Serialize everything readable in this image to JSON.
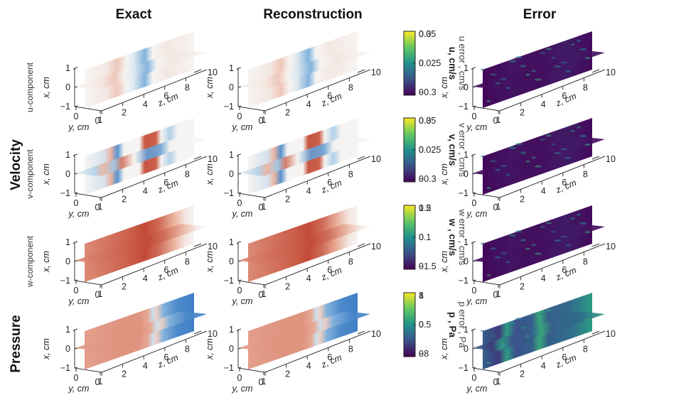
{
  "chart_data": {
    "type": "heatmap",
    "description_columns": [
      "Exact",
      "Reconstruction",
      "Error"
    ],
    "group_labels": [
      "Velocity",
      "Pressure"
    ],
    "axes": {
      "x_label": "x, cm",
      "y_label": "y, cm",
      "z_label": "z, cm",
      "x_ticks": [
        "1",
        "0",
        "−1"
      ],
      "y_ticks": [
        "0",
        "1"
      ],
      "z_ticks": [
        "0",
        "2",
        "4",
        "6",
        "8",
        "10"
      ],
      "z_far_tick": "10",
      "xlim": [
        -1,
        1
      ],
      "ylim": [
        0,
        1
      ],
      "zlim": [
        0,
        10
      ]
    },
    "rows": [
      {
        "label": "u-component",
        "field_colorbar": {
          "label": "u, cm/s",
          "range": [
            -0.3,
            0.3
          ],
          "ticks": [
            "0.3",
            "0",
            "−0.3"
          ],
          "colormap": "balance"
        },
        "error_colorbar": {
          "label": "u error , cm/s",
          "range": [
            0,
            0.05
          ],
          "ticks": [
            "0.05",
            "0.025",
            "0"
          ],
          "colormap": "viridis"
        },
        "pattern": "u"
      },
      {
        "label": "v-component",
        "field_colorbar": {
          "label": "v, cm/s",
          "range": [
            -0.3,
            0.3
          ],
          "ticks": [
            "0.3",
            "0",
            "−0.3"
          ],
          "colormap": "balance"
        },
        "error_colorbar": {
          "label": "v error , cm/s",
          "range": [
            0,
            0.05
          ],
          "ticks": [
            "0.05",
            "0.025",
            "0"
          ],
          "colormap": "viridis"
        },
        "pattern": "v"
      },
      {
        "label": "w-component",
        "field_colorbar": {
          "label": "w , cm/s",
          "range": [
            -1.5,
            1.5
          ],
          "ticks": [
            "1.5",
            "0",
            "−1.5"
          ],
          "colormap": "balance"
        },
        "error_colorbar": {
          "label": "w error , cm/s",
          "range": [
            0,
            0.2
          ],
          "ticks": [
            "0.2",
            "0.1",
            "0"
          ],
          "colormap": "viridis"
        },
        "pattern": "w"
      },
      {
        "label": "",
        "field_colorbar": {
          "label": "p , Pa",
          "range": [
            -8,
            8
          ],
          "ticks": [
            "8",
            "0",
            "−8"
          ],
          "colormap": "balance"
        },
        "error_colorbar": {
          "label": "p error , Pa",
          "range": [
            0,
            1
          ],
          "ticks": [
            "1",
            "0.5",
            "0"
          ],
          "colormap": "viridis"
        },
        "pattern": "p"
      }
    ]
  }
}
